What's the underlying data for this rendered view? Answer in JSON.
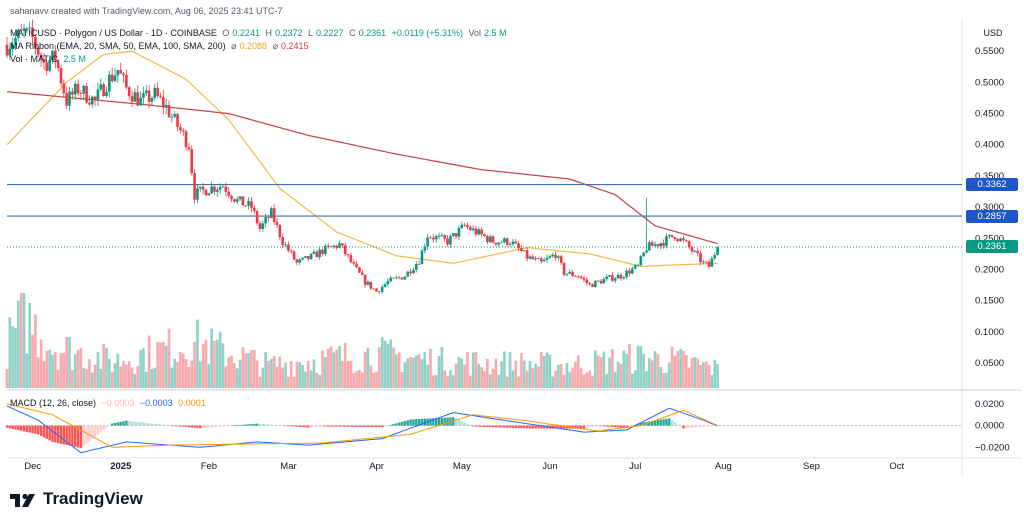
{
  "attribution": "sahanavv created with TradingView.com, Aug 06, 2025 23:41 UTC-7",
  "brand": "TradingView",
  "currency": "USD",
  "header": {
    "symbol": "MATICUSD · Polygon / US Dollar · 1D · COINBASE",
    "open_label": "O",
    "open": "0.2241",
    "high_label": "H",
    "high": "0.2372",
    "low_label": "L",
    "low": "0.2227",
    "close_label": "C",
    "close": "0.2361",
    "change": "+0.0119 (+5.31%)",
    "vol_label": "Vol",
    "vol": "2.5 M",
    "ma_label": "MA Ribbon (EMA, 20, SMA, 50, EMA, 100, SMA, 200)",
    "ma_symbol": "⌀",
    "ma_value_1": "0.2088",
    "ma_value_2": "0.2415",
    "volume_label": "Vol · MATIC",
    "volume_value": "2.5 M",
    "macd_label": "MACD (12, 26, close)",
    "macd_hist": "−0.0003",
    "macd_line": "−0.0003",
    "macd_signal": "0.0001"
  },
  "colors": {
    "up": "#089981",
    "down": "#f23645",
    "vol_up": "#8fd1c6",
    "vol_down": "#f7a9ae",
    "ma_50": "#f0b84a",
    "ma_200": "#c64141",
    "level": "#3f73a8",
    "level_tag": "#1e56c9",
    "price_tag": "#089981",
    "macd_line": "#2962ff",
    "signal_line": "#ff9800"
  },
  "chart_data": {
    "type": "candlestick",
    "title": "MATICUSD · Polygon / US Dollar · 1D · COINBASE",
    "x_ticks": [
      "Dec",
      "2025",
      "Feb",
      "Mar",
      "Apr",
      "May",
      "Jun",
      "Jul",
      "Aug",
      "Sep",
      "Oct"
    ],
    "price_axis": {
      "ticks": [
        "0.5500",
        "0.5000",
        "0.4500",
        "0.4000",
        "0.3500",
        "0.3000",
        "0.2500",
        "0.2000",
        "0.1500",
        "0.1000",
        "0.0500"
      ],
      "range": [
        0.01,
        0.6
      ]
    },
    "macd_axis": {
      "ticks": [
        "0.0200",
        "0.0000",
        "−0.0200"
      ],
      "range": [
        -0.028,
        0.03
      ]
    },
    "horizontal_levels": [
      {
        "value": 0.3362,
        "label": "0.3362"
      },
      {
        "value": 0.2857,
        "label": "0.2857"
      }
    ],
    "last_price": {
      "value": 0.2361,
      "label": "0.2361"
    },
    "price_anchors": [
      [
        "2024-11-29",
        0.56
      ],
      [
        "2024-12-05",
        0.58
      ],
      [
        "2024-12-08",
        0.57
      ],
      [
        "2024-12-12",
        0.53
      ],
      [
        "2024-12-16",
        0.54
      ],
      [
        "2024-12-20",
        0.47
      ],
      [
        "2024-12-24",
        0.49
      ],
      [
        "2024-12-30",
        0.47
      ],
      [
        "2025-01-03",
        0.5
      ],
      [
        "2025-01-07",
        0.52
      ],
      [
        "2025-01-10",
        0.49
      ],
      [
        "2025-01-15",
        0.47
      ],
      [
        "2025-01-20",
        0.48
      ],
      [
        "2025-01-24",
        0.46
      ],
      [
        "2025-01-28",
        0.43
      ],
      [
        "2025-02-01",
        0.4
      ],
      [
        "2025-02-03",
        0.32
      ],
      [
        "2025-02-08",
        0.33
      ],
      [
        "2025-02-13",
        0.335
      ],
      [
        "2025-02-18",
        0.31
      ],
      [
        "2025-02-23",
        0.3
      ],
      [
        "2025-02-26",
        0.265
      ],
      [
        "2025-03-02",
        0.29
      ],
      [
        "2025-03-06",
        0.245
      ],
      [
        "2025-03-11",
        0.21
      ],
      [
        "2025-03-16",
        0.22
      ],
      [
        "2025-03-20",
        0.23
      ],
      [
        "2025-03-26",
        0.24
      ],
      [
        "2025-03-31",
        0.205
      ],
      [
        "2025-04-04",
        0.18
      ],
      [
        "2025-04-08",
        0.165
      ],
      [
        "2025-04-12",
        0.18
      ],
      [
        "2025-04-18",
        0.19
      ],
      [
        "2025-04-23",
        0.215
      ],
      [
        "2025-04-26",
        0.255
      ],
      [
        "2025-05-03",
        0.245
      ],
      [
        "2025-05-09",
        0.27
      ],
      [
        "2025-05-13",
        0.26
      ],
      [
        "2025-05-19",
        0.245
      ],
      [
        "2025-05-25",
        0.245
      ],
      [
        "2025-05-31",
        0.22
      ],
      [
        "2025-06-05",
        0.21
      ],
      [
        "2025-06-10",
        0.225
      ],
      [
        "2025-06-13",
        0.195
      ],
      [
        "2025-06-18",
        0.19
      ],
      [
        "2025-06-22",
        0.175
      ],
      [
        "2025-06-28",
        0.185
      ],
      [
        "2025-07-03",
        0.19
      ],
      [
        "2025-07-09",
        0.205
      ],
      [
        "2025-07-12",
        0.235
      ],
      [
        "2025-07-18",
        0.245
      ],
      [
        "2025-07-22",
        0.255
      ],
      [
        "2025-07-26",
        0.24
      ],
      [
        "2025-08-01",
        0.21
      ],
      [
        "2025-08-03",
        0.205
      ],
      [
        "2025-08-06",
        0.2361
      ]
    ],
    "ma_50_anchors": [
      [
        "2024-11-29",
        0.4
      ],
      [
        "2024-12-20",
        0.5
      ],
      [
        "2025-01-02",
        0.545
      ],
      [
        "2025-01-12",
        0.55
      ],
      [
        "2025-01-31",
        0.505
      ],
      [
        "2025-02-15",
        0.44
      ],
      [
        "2025-03-05",
        0.33
      ],
      [
        "2025-03-25",
        0.26
      ],
      [
        "2025-04-15",
        0.222
      ],
      [
        "2025-05-05",
        0.21
      ],
      [
        "2025-05-31",
        0.235
      ],
      [
        "2025-06-22",
        0.225
      ],
      [
        "2025-07-10",
        0.205
      ],
      [
        "2025-08-06",
        0.21
      ]
    ],
    "ma_200_anchors": [
      [
        "2024-11-29",
        0.485
      ],
      [
        "2025-01-15",
        0.465
      ],
      [
        "2025-02-15",
        0.45
      ],
      [
        "2025-03-15",
        0.415
      ],
      [
        "2025-04-15",
        0.385
      ],
      [
        "2025-05-15",
        0.36
      ],
      [
        "2025-06-15",
        0.345
      ],
      [
        "2025-07-01",
        0.32
      ],
      [
        "2025-07-15",
        0.27
      ],
      [
        "2025-08-06",
        0.2415
      ]
    ],
    "volume_anchors": [
      [
        "2024-11-29",
        0.55
      ],
      [
        "2024-12-05",
        0.95
      ],
      [
        "2024-12-15",
        0.55
      ],
      [
        "2025-01-05",
        0.35
      ],
      [
        "2025-02-03",
        0.6
      ],
      [
        "2025-03-01",
        0.3
      ],
      [
        "2025-04-07",
        0.45
      ],
      [
        "2025-05-01",
        0.35
      ],
      [
        "2025-06-15",
        0.3
      ],
      [
        "2025-07-10",
        0.4
      ],
      [
        "2025-07-25",
        0.35
      ],
      [
        "2025-08-06",
        0.25
      ]
    ],
    "macd_anchors": [
      [
        "2024-11-29",
        0.018
      ],
      [
        "2024-12-10",
        0.005
      ],
      [
        "2024-12-25",
        -0.025
      ],
      [
        "2025-01-10",
        -0.015
      ],
      [
        "2025-02-05",
        -0.02
      ],
      [
        "2025-02-25",
        -0.015
      ],
      [
        "2025-03-15",
        -0.018
      ],
      [
        "2025-04-10",
        -0.012
      ],
      [
        "2025-05-05",
        0.012
      ],
      [
        "2025-05-20",
        0.006
      ],
      [
        "2025-06-20",
        -0.006
      ],
      [
        "2025-07-05",
        -0.004
      ],
      [
        "2025-07-20",
        0.016
      ],
      [
        "2025-08-01",
        0.005
      ],
      [
        "2025-08-06",
        -0.0003
      ]
    ],
    "signal_anchors": [
      [
        "2024-11-29",
        0.02
      ],
      [
        "2024-12-15",
        0.01
      ],
      [
        "2025-01-05",
        -0.02
      ],
      [
        "2025-01-25",
        -0.018
      ],
      [
        "2025-02-20",
        -0.017
      ],
      [
        "2025-03-20",
        -0.016
      ],
      [
        "2025-04-20",
        -0.008
      ],
      [
        "2025-05-12",
        0.01
      ],
      [
        "2025-06-01",
        0.004
      ],
      [
        "2025-06-25",
        -0.005
      ],
      [
        "2025-07-10",
        0.0
      ],
      [
        "2025-07-25",
        0.014
      ],
      [
        "2025-08-06",
        0.0001
      ]
    ]
  }
}
